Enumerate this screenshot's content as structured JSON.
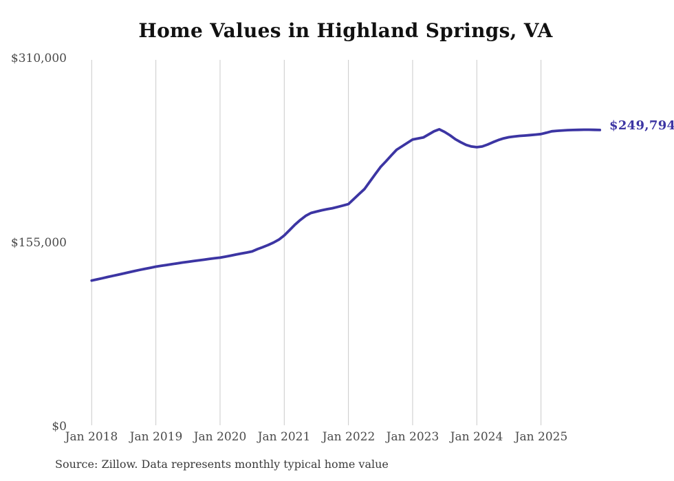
{
  "chart": {
    "title": "Home Values in Highland Springs, VA",
    "end_label": "$249,794",
    "source": "Source: Zillow. Data represents monthly typical home value",
    "colors": {
      "line": "#3c35a3",
      "end_label_text": "#3c35a3",
      "grid": "#c9c9c9",
      "axis_text": "#4a4a4a",
      "title_text": "#111111",
      "source_text": "#3a3a3a",
      "background": "#ffffff"
    }
  },
  "chart_data": {
    "type": "line",
    "title": "Home Values in Highland Springs, VA",
    "series_name": "Monthly typical home value (Zillow)",
    "grid": "vertical-only",
    "legend": "none",
    "ylim": [
      0,
      310000
    ],
    "y_ticks": [
      {
        "label": "$0",
        "value": 0
      },
      {
        "label": "$155,000",
        "value": 155000
      },
      {
        "label": "$310,000",
        "value": 310000
      }
    ],
    "x_tick_labels": [
      "Jan 2018",
      "Jan 2019",
      "Jan 2020",
      "Jan 2021",
      "Jan 2022",
      "Jan 2023",
      "Jan 2024",
      "Jan 2025"
    ],
    "last_point_label": "$249,794",
    "last_point_value": 249794,
    "x": [
      "2018-01",
      "2018-02",
      "2018-03",
      "2018-04",
      "2018-05",
      "2018-06",
      "2018-07",
      "2018-08",
      "2018-09",
      "2018-10",
      "2018-11",
      "2018-12",
      "2019-01",
      "2019-02",
      "2019-03",
      "2019-04",
      "2019-05",
      "2019-06",
      "2019-07",
      "2019-08",
      "2019-09",
      "2019-10",
      "2019-11",
      "2019-12",
      "2020-01",
      "2020-02",
      "2020-03",
      "2020-04",
      "2020-05",
      "2020-06",
      "2020-07",
      "2020-08",
      "2020-09",
      "2020-10",
      "2020-11",
      "2020-12",
      "2021-01",
      "2021-02",
      "2021-03",
      "2021-04",
      "2021-05",
      "2021-06",
      "2021-07",
      "2021-08",
      "2021-09",
      "2021-10",
      "2021-11",
      "2021-12",
      "2022-01",
      "2022-02",
      "2022-03",
      "2022-04",
      "2022-05",
      "2022-06",
      "2022-07",
      "2022-08",
      "2022-09",
      "2022-10",
      "2022-11",
      "2022-12",
      "2023-01",
      "2023-02",
      "2023-03",
      "2023-04",
      "2023-05",
      "2023-06",
      "2023-07",
      "2023-08",
      "2023-09",
      "2023-10",
      "2023-11",
      "2023-12",
      "2024-01",
      "2024-02",
      "2024-03",
      "2024-04",
      "2024-05",
      "2024-06",
      "2024-07",
      "2024-08",
      "2024-09",
      "2024-10",
      "2024-11",
      "2024-12",
      "2025-01",
      "2025-02",
      "2025-03",
      "2025-04",
      "2025-05",
      "2025-06",
      "2025-07",
      "2025-08",
      "2025-09",
      "2025-10",
      "2025-11",
      "2025-12"
    ],
    "values": [
      123000,
      124000,
      125000,
      126000,
      127000,
      128000,
      129000,
      130000,
      131000,
      132000,
      132900,
      133800,
      134700,
      135400,
      136100,
      136800,
      137500,
      138200,
      138800,
      139400,
      140000,
      140600,
      141200,
      141800,
      142300,
      143100,
      144000,
      144900,
      145800,
      146600,
      147500,
      149500,
      151200,
      153000,
      155000,
      157500,
      161000,
      165500,
      170000,
      174000,
      177500,
      179900,
      181100,
      182200,
      183100,
      183900,
      185000,
      186200,
      187400,
      191600,
      195900,
      200100,
      206300,
      212500,
      218600,
      223400,
      228300,
      233100,
      236000,
      238900,
      241800,
      242600,
      243500,
      246100,
      248700,
      250400,
      248100,
      245300,
      242000,
      239500,
      237200,
      235900,
      235300,
      235900,
      237500,
      239500,
      241300,
      242700,
      243700,
      244300,
      244800,
      245100,
      245500,
      245900,
      246400,
      247500,
      248700,
      249100,
      249400,
      249700,
      249800,
      249900,
      250000,
      250000,
      249900,
      249794
    ]
  }
}
